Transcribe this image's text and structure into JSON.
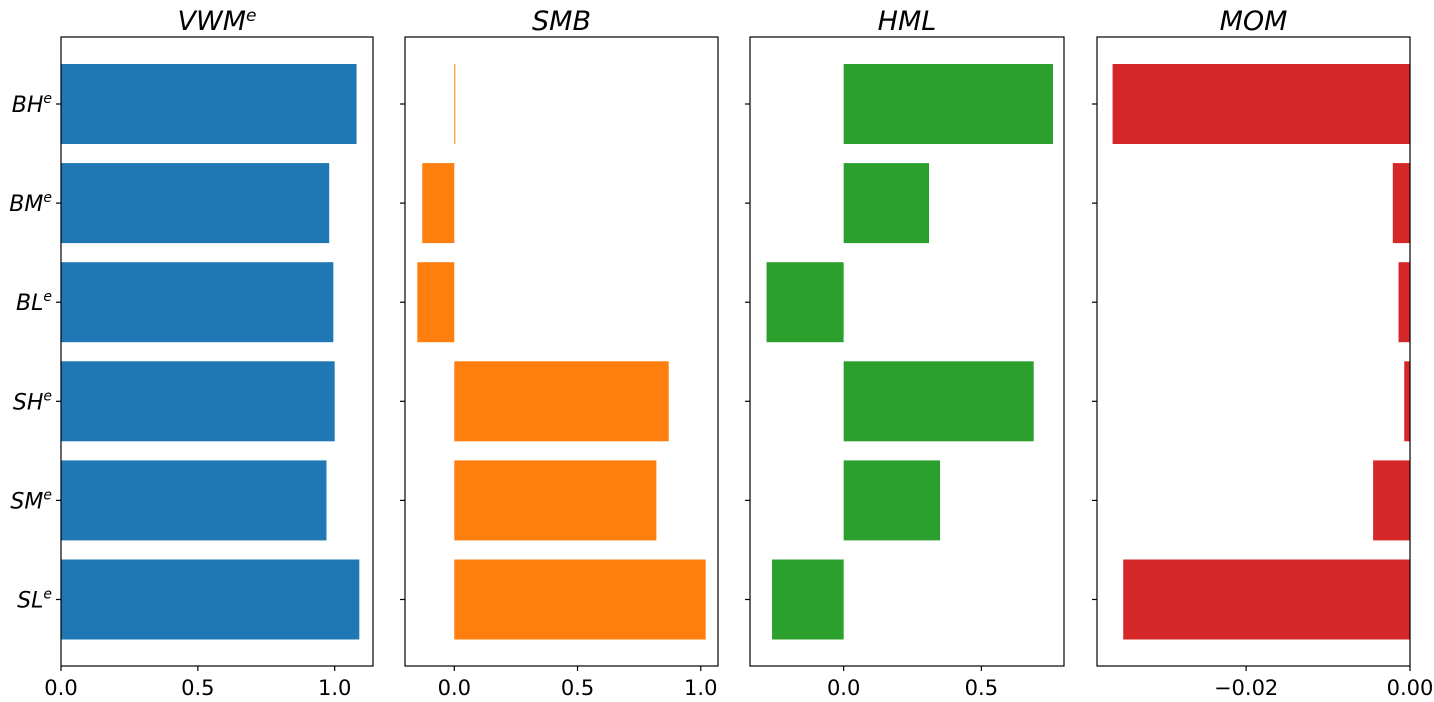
{
  "chart_data": {
    "type": "bar",
    "orientation": "horizontal",
    "categories": [
      {
        "base": "BH",
        "sup": "e"
      },
      {
        "base": "BM",
        "sup": "e"
      },
      {
        "base": "BL",
        "sup": "e"
      },
      {
        "base": "SH",
        "sup": "e"
      },
      {
        "base": "SM",
        "sup": "e"
      },
      {
        "base": "SL",
        "sup": "e"
      }
    ],
    "panels": [
      {
        "title": {
          "base": "VWM",
          "sup": "e"
        },
        "color": "#1f77b4",
        "values": [
          1.08,
          0.98,
          0.995,
          1.0,
          0.97,
          1.09
        ],
        "xlim": [
          0.0,
          1.14
        ],
        "ticks": [
          {
            "v": 0.0,
            "label": "0.0"
          },
          {
            "v": 0.5,
            "label": "0.5"
          },
          {
            "v": 1.0,
            "label": "1.0"
          }
        ]
      },
      {
        "title": {
          "base": "SMB",
          "sup": ""
        },
        "color": "#ff7f0e",
        "values": [
          0.003,
          -0.13,
          -0.15,
          0.87,
          0.82,
          1.02
        ],
        "xlim": [
          -0.2,
          1.07
        ],
        "ticks": [
          {
            "v": 0.0,
            "label": "0.0"
          },
          {
            "v": 0.5,
            "label": "0.5"
          },
          {
            "v": 1.0,
            "label": "1.0"
          }
        ]
      },
      {
        "title": {
          "base": "HML",
          "sup": ""
        },
        "color": "#2ca02c",
        "values": [
          0.76,
          0.31,
          -0.28,
          0.69,
          0.35,
          -0.26
        ],
        "xlim": [
          -0.34,
          0.8
        ],
        "ticks": [
          {
            "v": 0.0,
            "label": "0.0"
          },
          {
            "v": 0.5,
            "label": "0.5"
          }
        ]
      },
      {
        "title": {
          "base": "MOM",
          "sup": ""
        },
        "color": "#d62728",
        "values": [
          -0.0363,
          -0.0021,
          -0.0014,
          -0.0007,
          -0.0045,
          -0.035
        ],
        "xlim": [
          -0.0382,
          0.0
        ],
        "ticks": [
          {
            "v": -0.02,
            "label": "−0.02"
          },
          {
            "v": 0.0,
            "label": "0.00"
          }
        ]
      }
    ]
  }
}
